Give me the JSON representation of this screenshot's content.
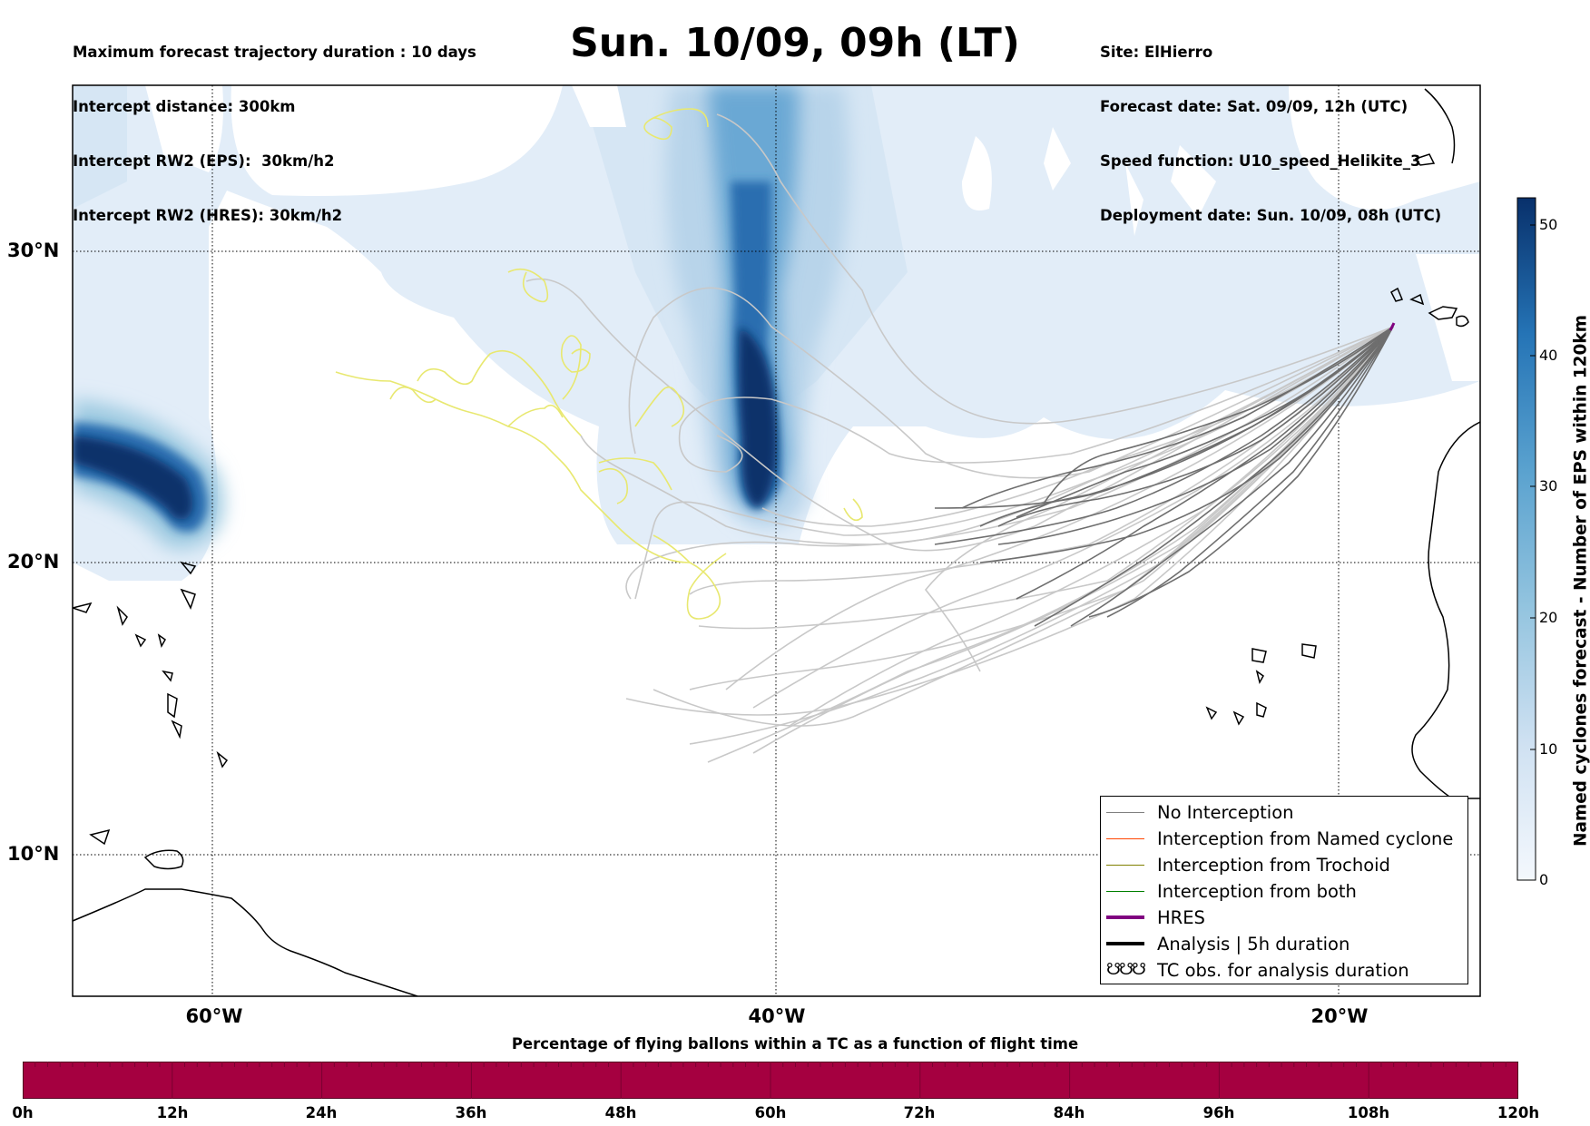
{
  "header": {
    "left_lines": [
      "Maximum forecast trajectory duration : 10 days",
      "Intercept distance: 300km",
      "Intercept RW2 (EPS):  30km/h2",
      "Intercept RW2 (HRES): 30km/h2"
    ],
    "right_lines": [
      "Site: ElHierro",
      "Forecast date: Sat. 09/09, 12h (UTC)",
      "Speed function: U10_speed_Helikite_3",
      "Deployment date: Sun. 10/09, 08h (UTC)"
    ],
    "title": "Sun. 10/09, 09h (LT)"
  },
  "map": {
    "lat_labels": [
      "30°N",
      "20°N",
      "10°N"
    ],
    "lon_labels": [
      "60°W",
      "40°W",
      "20°W"
    ],
    "grid_lats": [
      30,
      20,
      10
    ],
    "grid_lons": [
      60,
      40,
      20
    ],
    "extent": {
      "lon_west": 65,
      "lon_east": 15,
      "lat_south": 5.4,
      "lat_north": 34.7
    },
    "launch_site": "ElHierro"
  },
  "legend": {
    "items": [
      {
        "label": "No Interception",
        "color": "#808080",
        "style": "thin"
      },
      {
        "label": "Interception from Named cyclone",
        "color": "#ff4500",
        "style": "thin"
      },
      {
        "label": "Interception from Trochoid",
        "color": "#808000",
        "style": "thin"
      },
      {
        "label": "Interception from both",
        "color": "#008000",
        "style": "thin"
      },
      {
        "label": "HRES",
        "color": "#800080",
        "style": "thick"
      },
      {
        "label": "Analysis | 5h duration",
        "color": "#000000",
        "style": "thick"
      },
      {
        "label": "TC obs. for analysis duration",
        "color": "#000000",
        "style": "symbol"
      }
    ]
  },
  "colorbar": {
    "title": "Named cyclones forecast - Number of EPS within 120km",
    "ticks": [
      "50",
      "40",
      "30",
      "20",
      "10",
      "0"
    ],
    "range": [
      0,
      52
    ],
    "colors": [
      "#eef4fb",
      "#c9dcef",
      "#9ecae1",
      "#6baed6",
      "#4292c6",
      "#2171b5",
      "#08519c",
      "#08306b"
    ]
  },
  "time_bar": {
    "title": "Percentage of flying ballons within a TC as a function of flight time",
    "ticks": [
      "0h",
      "12h",
      "24h",
      "36h",
      "48h",
      "60h",
      "72h",
      "84h",
      "96h",
      "108h",
      "120h"
    ],
    "fill_color": "#a50040",
    "percent_values": [
      0,
      0,
      0,
      0,
      0,
      0,
      0,
      0,
      0,
      0,
      0
    ]
  }
}
